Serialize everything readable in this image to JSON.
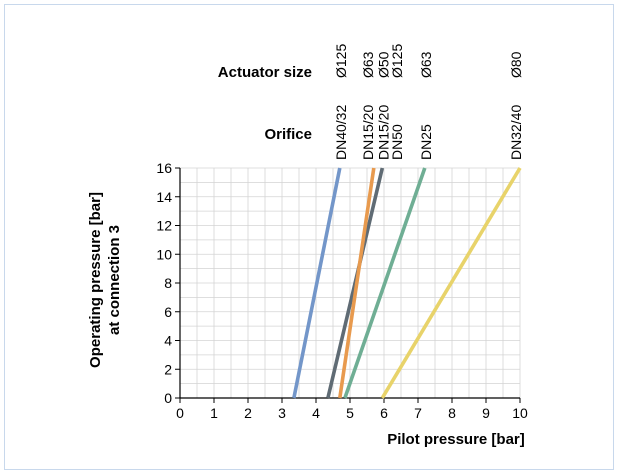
{
  "chart_data": {
    "type": "line",
    "header_labels": {
      "actuator_size": "Actuator size",
      "orifice": "Orifice"
    },
    "xlabel": "Pilot pressure [bar]",
    "ylabel_lines": [
      "Operating pressure [bar]",
      "at connection 3"
    ],
    "xlim": [
      0,
      10
    ],
    "ylim": [
      0,
      16
    ],
    "x_ticks": [
      "0",
      "1",
      "2",
      "3",
      "4",
      "5",
      "6",
      "7",
      "8",
      "9",
      "10"
    ],
    "y_ticks": [
      "0",
      "2",
      "4",
      "6",
      "8",
      "10",
      "12",
      "14",
      "16"
    ],
    "grid": true,
    "series": [
      {
        "orifice": "DN40/32",
        "actuator": "Ø125",
        "color": "#7396c9",
        "points": [
          [
            3.35,
            0
          ],
          [
            4.7,
            16
          ]
        ]
      },
      {
        "orifice": "DN15/20",
        "actuator": "Ø50",
        "color": "#5f6b74",
        "points": [
          [
            4.35,
            0
          ],
          [
            5.95,
            16
          ]
        ]
      },
      {
        "orifice": "DN15/20",
        "actuator": "Ø63",
        "color": "#e89a4e",
        "points": [
          [
            4.7,
            0
          ],
          [
            5.7,
            16
          ]
        ]
      },
      {
        "orifice": "DN25",
        "actuator": "Ø63",
        "color": "#6fae94",
        "points": [
          [
            4.85,
            0
          ],
          [
            7.2,
            16
          ]
        ]
      },
      {
        "orifice": "DN32/40",
        "actuator": "Ø80",
        "color": "#e8d36a",
        "points": [
          [
            5.95,
            0
          ],
          [
            10.0,
            16
          ]
        ]
      }
    ],
    "header_columns": [
      {
        "orifice": "DN40/32",
        "actuator": "Ø125",
        "col_x": 4.7
      },
      {
        "orifice": "DN15/20",
        "actuator": "Ø63",
        "col_x": 5.5
      },
      {
        "orifice": "DN15/20",
        "actuator": "Ø50",
        "col_x": 5.95
      },
      {
        "orifice": "DN50",
        "actuator": "Ø125",
        "col_x": 6.35
      },
      {
        "orifice": "DN25",
        "actuator": "Ø63",
        "col_x": 7.2
      },
      {
        "orifice": "DN32/40",
        "actuator": "Ø80",
        "col_x": 9.85
      }
    ]
  }
}
